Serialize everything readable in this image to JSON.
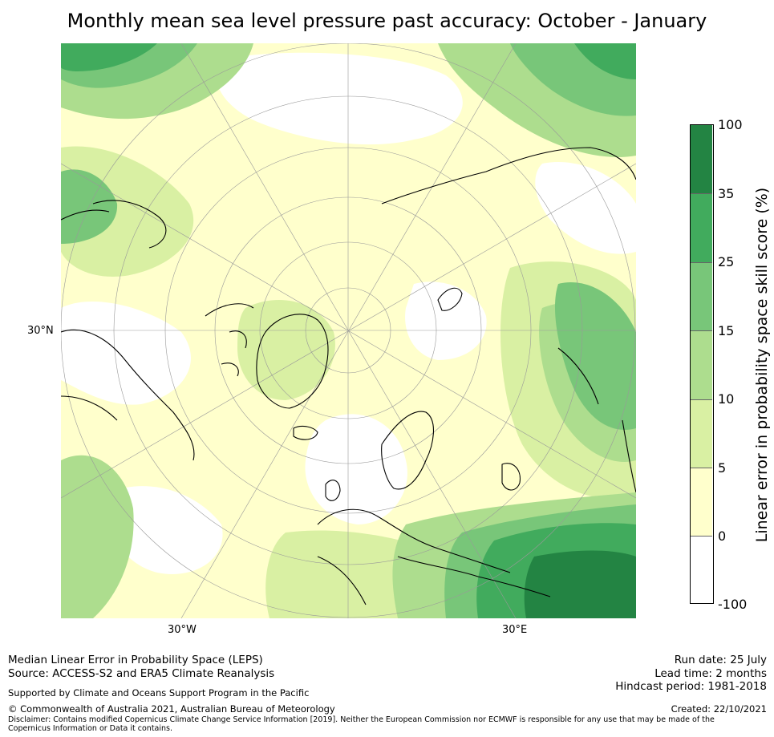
{
  "title": "Monthly mean sea level pressure past accuracy: October - January",
  "map": {
    "projection": "north-polar-stereographic",
    "lon_labels": [
      "30°W",
      "30°E"
    ],
    "lat_label": "30°N",
    "palette": {
      "c0": "#ffffff",
      "c1": "#ffffcc",
      "c2": "#d9f0a3",
      "c3": "#addd8e",
      "c4": "#78c679",
      "c5": "#41ab5d",
      "c6": "#238443",
      "coast": "#000000",
      "grid": "#999999"
    }
  },
  "colorbar": {
    "label": "Linear error in probability space skill score (%)",
    "ticks": [
      "100",
      "35",
      "25",
      "15",
      "10",
      "5",
      "0",
      "-100"
    ],
    "colors": [
      "#238443",
      "#41ab5d",
      "#78c679",
      "#addd8e",
      "#d9f0a3",
      "#ffffcc",
      "#ffffff"
    ]
  },
  "footer": {
    "line1": "Median Linear Error in Probability Space (LEPS)",
    "line2": "Source: ACCESS-S2 and ERA5 Climate Reanalysis",
    "support": "Supported by Climate and Oceans Support Program in the Pacific",
    "copyright": "© Commonwealth of Australia 2021, Australian Bureau of Meteorology",
    "disclaimer": "Disclaimer: Contains modified Copernicus Climate Change Service Information [2019]. Neither the European Commission nor ECMWF is responsible for any use that may be made of the Copernicus Information or Data it contains.",
    "run_date": "Run date: 25 July",
    "lead_time": "Lead time: 2 months",
    "hindcast": "Hindcast period: 1981-2018",
    "created": "Created: 22/10/2021"
  }
}
